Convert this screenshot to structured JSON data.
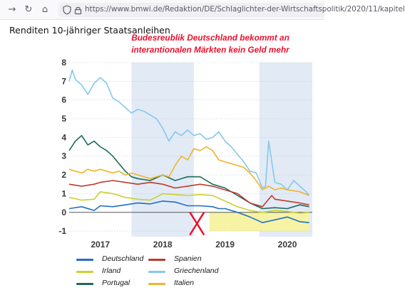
{
  "browser": {
    "back_icon": "arrow-right-icon",
    "reload_icon": "reload-icon",
    "home_icon": "home-icon",
    "url": "https://www.bmwi.de/Redaktion/DE/Schlaglichter-der-Wirtschaftspolitik/2020/11/kapitel"
  },
  "page": {
    "heading": "Renditen 10-jähriger Staatsanleihen"
  },
  "annotation": {
    "line1": "Budesreublik Deutschland bekommt an",
    "line2": "interantionalen Märkten kein Geld mehr"
  },
  "chart_data": {
    "type": "line",
    "x_unit": "years",
    "xlim": [
      2016.5,
      2020.4
    ],
    "ylim": [
      -1.3,
      8
    ],
    "y_ticks": [
      -1,
      0,
      1,
      2,
      3,
      4,
      5,
      6,
      7,
      8
    ],
    "x_ticks": [
      {
        "x": 2017.0,
        "label": "2017"
      },
      {
        "x": 2018.0,
        "label": "2018"
      },
      {
        "x": 2019.0,
        "label": "2019"
      },
      {
        "x": 2020.0,
        "label": "2020"
      }
    ],
    "shaded_periods": [
      {
        "start": 2017.5,
        "end": 2018.5,
        "color": "#e2eaf6"
      },
      {
        "start": 2019.55,
        "end": 2020.4,
        "color": "#e2eaf6"
      }
    ],
    "highlight_band": {
      "x_start": 2018.75,
      "x_end": 2020.35,
      "y_start": -1.0,
      "y_end": 0.0,
      "color": "#f6f3a4"
    },
    "cross_mark": {
      "x": 2018.55,
      "y": -0.6,
      "color": "#e8112d"
    },
    "zero_line": true,
    "series": [
      {
        "name": "Deutschland",
        "color": "#1e6fc8",
        "x": [
          2016.5,
          2016.7,
          2016.9,
          2017.0,
          2017.2,
          2017.4,
          2017.6,
          2017.8,
          2018.0,
          2018.2,
          2018.4,
          2018.6,
          2018.8,
          2018.9,
          2019.0,
          2019.2,
          2019.4,
          2019.6,
          2019.8,
          2020.0,
          2020.2,
          2020.35
        ],
        "y": [
          0.2,
          0.3,
          0.1,
          0.35,
          0.3,
          0.4,
          0.5,
          0.45,
          0.6,
          0.55,
          0.35,
          0.35,
          0.3,
          0.2,
          0.2,
          0.0,
          -0.25,
          -0.55,
          -0.4,
          -0.25,
          -0.5,
          -0.55
        ]
      },
      {
        "name": "Irland",
        "color": "#c8d22f",
        "x": [
          2016.5,
          2016.7,
          2016.9,
          2017.0,
          2017.2,
          2017.4,
          2017.6,
          2017.8,
          2018.0,
          2018.2,
          2018.4,
          2018.6,
          2018.8,
          2019.0,
          2019.2,
          2019.4,
          2019.6,
          2019.8,
          2020.0,
          2020.2,
          2020.35
        ],
        "y": [
          0.8,
          0.65,
          0.7,
          1.1,
          1.0,
          0.8,
          0.7,
          0.65,
          1.0,
          0.95,
          0.9,
          0.95,
          0.9,
          0.6,
          0.3,
          0.1,
          0.0,
          0.1,
          0.05,
          -0.05,
          0.0
        ]
      },
      {
        "name": "Portugal",
        "color": "#1a6b5b",
        "x": [
          2016.5,
          2016.6,
          2016.7,
          2016.8,
          2016.9,
          2017.0,
          2017.1,
          2017.2,
          2017.3,
          2017.4,
          2017.5,
          2017.6,
          2017.8,
          2018.0,
          2018.2,
          2018.4,
          2018.6,
          2018.8,
          2019.0,
          2019.2,
          2019.4,
          2019.6,
          2019.8,
          2020.0,
          2020.2,
          2020.35
        ],
        "y": [
          3.3,
          3.8,
          4.1,
          3.6,
          3.8,
          3.5,
          3.3,
          3.0,
          2.6,
          2.2,
          1.9,
          1.8,
          1.7,
          2.0,
          1.7,
          1.9,
          1.9,
          1.5,
          1.3,
          0.9,
          0.5,
          0.2,
          0.25,
          0.2,
          0.4,
          0.3
        ]
      },
      {
        "name": "Spanien",
        "color": "#c0392b",
        "x": [
          2016.5,
          2016.7,
          2016.9,
          2017.0,
          2017.2,
          2017.4,
          2017.6,
          2017.8,
          2018.0,
          2018.2,
          2018.4,
          2018.6,
          2018.8,
          2019.0,
          2019.2,
          2019.4,
          2019.6,
          2019.75,
          2019.8,
          2020.0,
          2020.2,
          2020.35
        ],
        "y": [
          1.5,
          1.4,
          1.5,
          1.6,
          1.7,
          1.6,
          1.5,
          1.6,
          1.5,
          1.3,
          1.4,
          1.5,
          1.4,
          1.2,
          1.0,
          0.5,
          0.3,
          0.9,
          0.7,
          0.6,
          0.5,
          0.4
        ]
      },
      {
        "name": "Griechenland",
        "color": "#86c8e8",
        "x": [
          2016.5,
          2016.55,
          2016.6,
          2016.7,
          2016.8,
          2016.9,
          2017.0,
          2017.1,
          2017.2,
          2017.3,
          2017.4,
          2017.5,
          2017.6,
          2017.7,
          2017.8,
          2017.9,
          2018.0,
          2018.1,
          2018.2,
          2018.3,
          2018.4,
          2018.5,
          2018.6,
          2018.7,
          2018.8,
          2018.9,
          2019.0,
          2019.1,
          2019.2,
          2019.3,
          2019.4,
          2019.5,
          2019.6,
          2019.65,
          2019.7,
          2019.8,
          2019.9,
          2020.0,
          2020.1,
          2020.2,
          2020.3,
          2020.35
        ],
        "y": [
          7.0,
          7.6,
          7.1,
          6.8,
          6.3,
          6.9,
          7.2,
          6.9,
          6.1,
          5.9,
          5.6,
          5.3,
          5.5,
          5.4,
          5.2,
          5.0,
          4.5,
          3.8,
          4.3,
          4.1,
          4.4,
          4.1,
          4.2,
          3.9,
          4.0,
          4.3,
          3.8,
          3.5,
          3.1,
          2.7,
          2.2,
          2.1,
          1.3,
          1.4,
          3.8,
          1.6,
          1.5,
          1.2,
          1.7,
          1.4,
          1.1,
          0.9
        ]
      },
      {
        "name": "Italien",
        "color": "#f0b429",
        "x": [
          2016.5,
          2016.6,
          2016.7,
          2016.8,
          2016.9,
          2017.0,
          2017.1,
          2017.2,
          2017.3,
          2017.4,
          2017.5,
          2017.6,
          2017.8,
          2018.0,
          2018.1,
          2018.2,
          2018.3,
          2018.4,
          2018.5,
          2018.6,
          2018.7,
          2018.8,
          2018.9,
          2019.0,
          2019.1,
          2019.2,
          2019.3,
          2019.4,
          2019.5,
          2019.6,
          2019.7,
          2019.8,
          2019.9,
          2020.0,
          2020.2,
          2020.35
        ],
        "y": [
          2.3,
          2.2,
          2.1,
          2.3,
          2.2,
          2.3,
          2.2,
          2.1,
          2.2,
          2.0,
          2.1,
          2.0,
          1.8,
          2.0,
          1.9,
          2.5,
          3.0,
          2.8,
          3.4,
          3.3,
          3.5,
          3.3,
          2.8,
          2.7,
          2.6,
          2.5,
          2.4,
          2.1,
          1.7,
          1.2,
          1.4,
          1.2,
          1.3,
          1.2,
          1.1,
          0.9
        ]
      }
    ]
  }
}
